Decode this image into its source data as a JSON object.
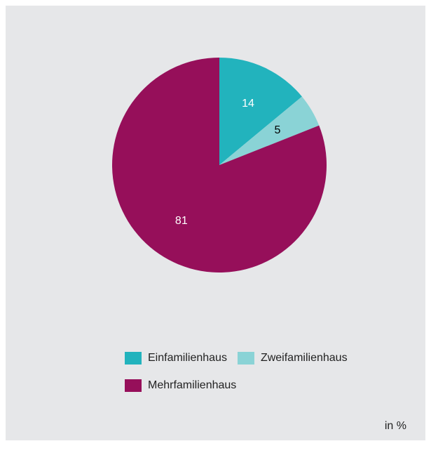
{
  "chart_data": {
    "type": "pie",
    "categories": [
      "Einfamilienhaus",
      "Zweifamilienhaus",
      "Mehrfamilienhaus"
    ],
    "values": [
      14,
      5,
      81
    ],
    "colors": [
      "#22b3bd",
      "#8ad3d6",
      "#960f5a"
    ],
    "label_colors": [
      "#ffffff",
      "#000000",
      "#ffffff"
    ],
    "note": "in %"
  }
}
